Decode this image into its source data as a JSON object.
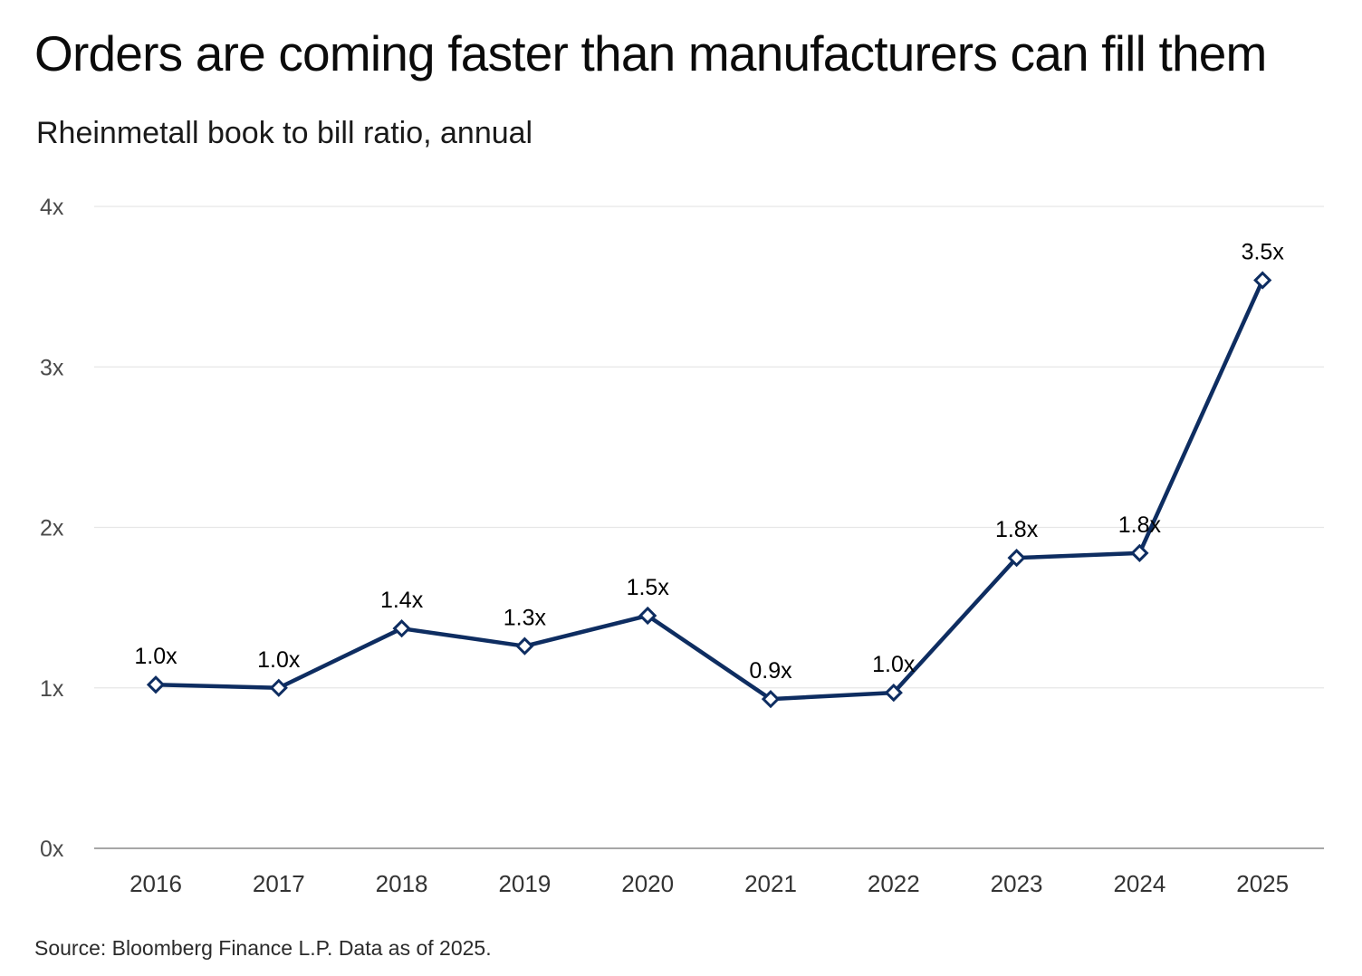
{
  "title": "Orders are coming faster than manufacturers can fill them",
  "subtitle": "Rheinmetall book to bill ratio, annual",
  "source": "Source: Bloomberg Finance L.P. Data as of 2025.",
  "colors": {
    "line": "#0e2d61",
    "grid": "#e6e6e6",
    "axis": "#8a8a8a",
    "marker_fill": "#ffffff"
  },
  "chart_data": {
    "type": "line",
    "categories": [
      "2016",
      "2017",
      "2018",
      "2019",
      "2020",
      "2021",
      "2022",
      "2023",
      "2024",
      "2025"
    ],
    "series": [
      {
        "values": [
          1.02,
          1.0,
          1.37,
          1.26,
          1.45,
          0.93,
          0.97,
          1.81,
          1.84,
          3.54
        ],
        "data_labels": [
          "1.0x",
          "1.0x",
          "1.4x",
          "1.3x",
          "1.5x",
          "0.9x",
          "1.0x",
          "1.8x",
          "1.8x",
          "3.5x"
        ]
      }
    ],
    "ylim": [
      0,
      4
    ],
    "yticks": [
      0,
      1,
      2,
      3,
      4
    ],
    "ytick_labels": [
      "0x",
      "1x",
      "2x",
      "3x",
      "4x"
    ],
    "marker": "diamond",
    "grid": true
  }
}
